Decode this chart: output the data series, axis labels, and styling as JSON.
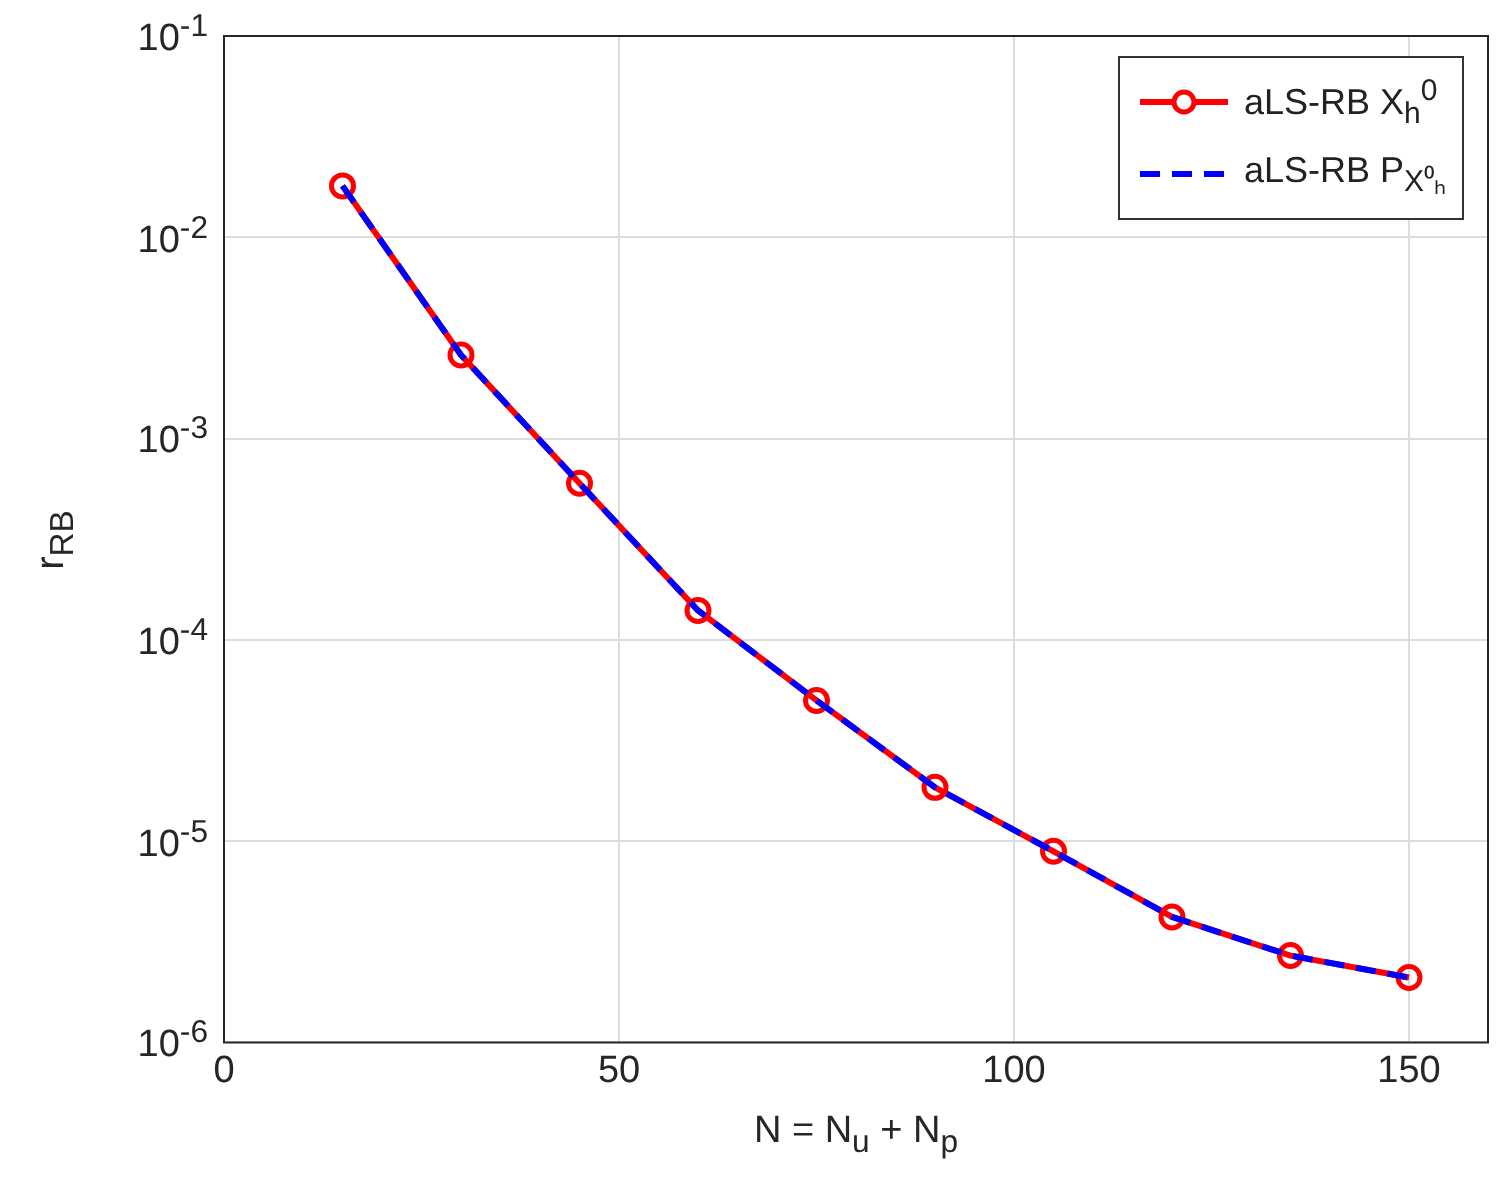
{
  "chart_data": {
    "type": "line",
    "xlabel": "N = N$_{u}$ + N$_{p}$",
    "ylabel": "r$_{RB}$",
    "x": [
      15,
      30,
      45,
      60,
      75,
      90,
      105,
      120,
      135,
      150
    ],
    "series": [
      {
        "name": "aLS-RB X$_{h}$$^{0}$",
        "color": "#ff0000",
        "marker": "circle",
        "line_style": "solid",
        "values": [
          0.018,
          0.0026,
          0.0006,
          0.00014,
          5e-05,
          1.85e-05,
          8.9e-06,
          4.2e-06,
          2.7e-06,
          2.1e-06
        ]
      },
      {
        "name": "aLS-RB P$_{X⁰ₕ}$",
        "color": "#0000ff",
        "marker": "none",
        "line_style": "dashed",
        "values": [
          0.018,
          0.0026,
          0.0006,
          0.00014,
          5e-05,
          1.85e-05,
          8.9e-06,
          4.2e-06,
          2.7e-06,
          2.1e-06
        ]
      }
    ],
    "xlim": [
      0,
      160
    ],
    "xticks": [
      0,
      50,
      100,
      150
    ],
    "ylim": [
      1e-06,
      0.1
    ],
    "yticks": [
      {
        "value": 1e-06,
        "label": "10$^{-6}$"
      },
      {
        "value": 1e-05,
        "label": "10$^{-5}$"
      },
      {
        "value": 0.0001,
        "label": "10$^{-4}$"
      },
      {
        "value": 0.001,
        "label": "10$^{-3}$"
      },
      {
        "value": 0.01,
        "label": "10$^{-2}$"
      },
      {
        "value": 0.1,
        "label": "10$^{-1}$"
      }
    ],
    "log": "y",
    "grid": true,
    "legend": "top right"
  }
}
